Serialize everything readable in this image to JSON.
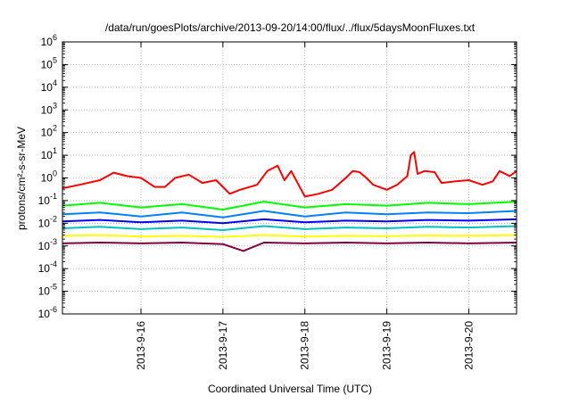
{
  "chart_data": {
    "type": "line",
    "title": "/data/run/goesPlots/archive/2013-09-20/14:00/flux/../flux/5daysMoonFluxes.txt",
    "xlabel": "Coordinated Universal Time (UTC)",
    "ylabel": "protons/cm²-s-sr-MeV",
    "yscale": "log",
    "ylim": [
      1e-06,
      1000000.0
    ],
    "xlim": [
      "2013-09-15 01:00",
      "2013-09-20 14:00"
    ],
    "grid": true,
    "legend": "none",
    "x_ticks": [
      {
        "label": "2013-9-16",
        "at": "2013-09-16 00:00"
      },
      {
        "label": "2013-9-17",
        "at": "2013-09-17 00:00"
      },
      {
        "label": "2013-9-18",
        "at": "2013-09-18 00:00"
      },
      {
        "label": "2013-9-19",
        "at": "2013-09-19 00:00"
      },
      {
        "label": "2013-9-20",
        "at": "2013-09-20 00:00"
      }
    ],
    "y_ticks": [
      {
        "value": 1e-06,
        "base": "10",
        "exp": "-6"
      },
      {
        "value": 1e-05,
        "base": "10",
        "exp": "-5"
      },
      {
        "value": 0.0001,
        "base": "10",
        "exp": "-4"
      },
      {
        "value": 0.001,
        "base": "10",
        "exp": "-3"
      },
      {
        "value": 0.01,
        "base": "10",
        "exp": "-2"
      },
      {
        "value": 0.1,
        "base": "10",
        "exp": "-1"
      },
      {
        "value": 1.0,
        "base": "10",
        "exp": "0"
      },
      {
        "value": 10.0,
        "base": "10",
        "exp": "1"
      },
      {
        "value": 100.0,
        "base": "10",
        "exp": "2"
      },
      {
        "value": 1000.0,
        "base": "10",
        "exp": "3"
      },
      {
        "value": 10000.0,
        "base": "10",
        "exp": "4"
      },
      {
        "value": 100000.0,
        "base": "10",
        "exp": "5"
      },
      {
        "value": 1000000.0,
        "base": "10",
        "exp": "6"
      }
    ],
    "series": [
      {
        "color": "#ff0000",
        "x": [
          "2013-09-15 01:00",
          "2013-09-15 06:00",
          "2013-09-15 12:00",
          "2013-09-15 16:00",
          "2013-09-15 20:00",
          "2013-09-16 00:00",
          "2013-09-16 04:00",
          "2013-09-16 07:00",
          "2013-09-16 10:00",
          "2013-09-16 14:00",
          "2013-09-16 18:00",
          "2013-09-16 22:00",
          "2013-09-17 02:00",
          "2013-09-17 05:00",
          "2013-09-17 10:00",
          "2013-09-17 13:00",
          "2013-09-17 16:00",
          "2013-09-17 18:00",
          "2013-09-17 20:00",
          "2013-09-18 00:00",
          "2013-09-18 04:00",
          "2013-09-18 08:00",
          "2013-09-18 12:00",
          "2013-09-18 14:00",
          "2013-09-18 16:00",
          "2013-09-18 18:00",
          "2013-09-18 20:00",
          "2013-09-19 00:00",
          "2013-09-19 03:00",
          "2013-09-19 06:00",
          "2013-09-19 07:00",
          "2013-09-19 08:00",
          "2013-09-19 09:00",
          "2013-09-19 11:00",
          "2013-09-19 14:00",
          "2013-09-19 16:00",
          "2013-09-19 20:00",
          "2013-09-20 00:00",
          "2013-09-20 04:00",
          "2013-09-20 07:00",
          "2013-09-20 09:00",
          "2013-09-20 12:00",
          "2013-09-20 14:00"
        ],
        "values": [
          0.35,
          0.5,
          0.8,
          1.7,
          1.2,
          1.0,
          0.4,
          0.4,
          1.0,
          1.4,
          0.6,
          0.8,
          0.2,
          0.3,
          0.5,
          2.0,
          3.5,
          0.8,
          2.0,
          0.15,
          0.2,
          0.3,
          1.0,
          2.0,
          1.8,
          1.0,
          0.5,
          0.3,
          0.5,
          1.2,
          10.0,
          14.0,
          1.5,
          2.0,
          1.8,
          0.6,
          0.7,
          0.8,
          0.5,
          0.7,
          2.0,
          1.2,
          2.0
        ]
      },
      {
        "color": "#00ff00",
        "x": [
          "2013-09-15 01:00",
          "2013-09-15 12:00",
          "2013-09-16 00:00",
          "2013-09-16 12:00",
          "2013-09-17 00:00",
          "2013-09-17 12:00",
          "2013-09-18 00:00",
          "2013-09-18 12:00",
          "2013-09-19 00:00",
          "2013-09-19 12:00",
          "2013-09-20 00:00",
          "2013-09-20 14:00"
        ],
        "values": [
          0.06,
          0.08,
          0.05,
          0.07,
          0.04,
          0.09,
          0.05,
          0.07,
          0.06,
          0.08,
          0.07,
          0.09
        ]
      },
      {
        "color": "#0080ff",
        "x": [
          "2013-09-15 01:00",
          "2013-09-15 12:00",
          "2013-09-16 00:00",
          "2013-09-16 12:00",
          "2013-09-17 00:00",
          "2013-09-17 12:00",
          "2013-09-18 00:00",
          "2013-09-18 12:00",
          "2013-09-19 00:00",
          "2013-09-19 12:00",
          "2013-09-20 00:00",
          "2013-09-20 14:00"
        ],
        "values": [
          0.025,
          0.03,
          0.02,
          0.03,
          0.018,
          0.035,
          0.02,
          0.03,
          0.025,
          0.03,
          0.028,
          0.035
        ]
      },
      {
        "color": "#0000ff",
        "x": [
          "2013-09-15 01:00",
          "2013-09-15 12:00",
          "2013-09-16 00:00",
          "2013-09-16 12:00",
          "2013-09-17 00:00",
          "2013-09-17 12:00",
          "2013-09-18 00:00",
          "2013-09-18 12:00",
          "2013-09-19 00:00",
          "2013-09-19 12:00",
          "2013-09-20 00:00",
          "2013-09-20 14:00"
        ],
        "values": [
          0.012,
          0.014,
          0.011,
          0.013,
          0.01,
          0.015,
          0.011,
          0.013,
          0.012,
          0.014,
          0.013,
          0.015
        ]
      },
      {
        "color": "#00c0c0",
        "x": [
          "2013-09-15 01:00",
          "2013-09-15 12:00",
          "2013-09-16 00:00",
          "2013-09-16 12:00",
          "2013-09-17 00:00",
          "2013-09-17 12:00",
          "2013-09-18 00:00",
          "2013-09-18 12:00",
          "2013-09-19 00:00",
          "2013-09-19 12:00",
          "2013-09-20 00:00",
          "2013-09-20 14:00"
        ],
        "values": [
          0.006,
          0.007,
          0.0055,
          0.0065,
          0.005,
          0.0075,
          0.0055,
          0.0065,
          0.006,
          0.007,
          0.0065,
          0.0075
        ]
      },
      {
        "color": "#ffff00",
        "x": [
          "2013-09-15 01:00",
          "2013-09-15 12:00",
          "2013-09-16 00:00",
          "2013-09-16 12:00",
          "2013-09-17 00:00",
          "2013-09-17 12:00",
          "2013-09-18 00:00",
          "2013-09-18 12:00",
          "2013-09-19 00:00",
          "2013-09-19 12:00",
          "2013-09-20 00:00",
          "2013-09-20 14:00"
        ],
        "values": [
          0.0028,
          0.003,
          0.0026,
          0.0028,
          0.0025,
          0.003,
          0.0026,
          0.0028,
          0.0027,
          0.0029,
          0.0028,
          0.003
        ]
      },
      {
        "color": "#800040",
        "x": [
          "2013-09-15 01:00",
          "2013-09-15 12:00",
          "2013-09-16 00:00",
          "2013-09-16 12:00",
          "2013-09-17 00:00",
          "2013-09-17 06:00",
          "2013-09-17 12:00",
          "2013-09-18 00:00",
          "2013-09-18 12:00",
          "2013-09-19 00:00",
          "2013-09-19 12:00",
          "2013-09-20 00:00",
          "2013-09-20 14:00"
        ],
        "values": [
          0.0013,
          0.0014,
          0.0013,
          0.0014,
          0.0012,
          0.0006,
          0.0014,
          0.0013,
          0.0014,
          0.0013,
          0.0014,
          0.0013,
          0.0014
        ]
      }
    ]
  }
}
